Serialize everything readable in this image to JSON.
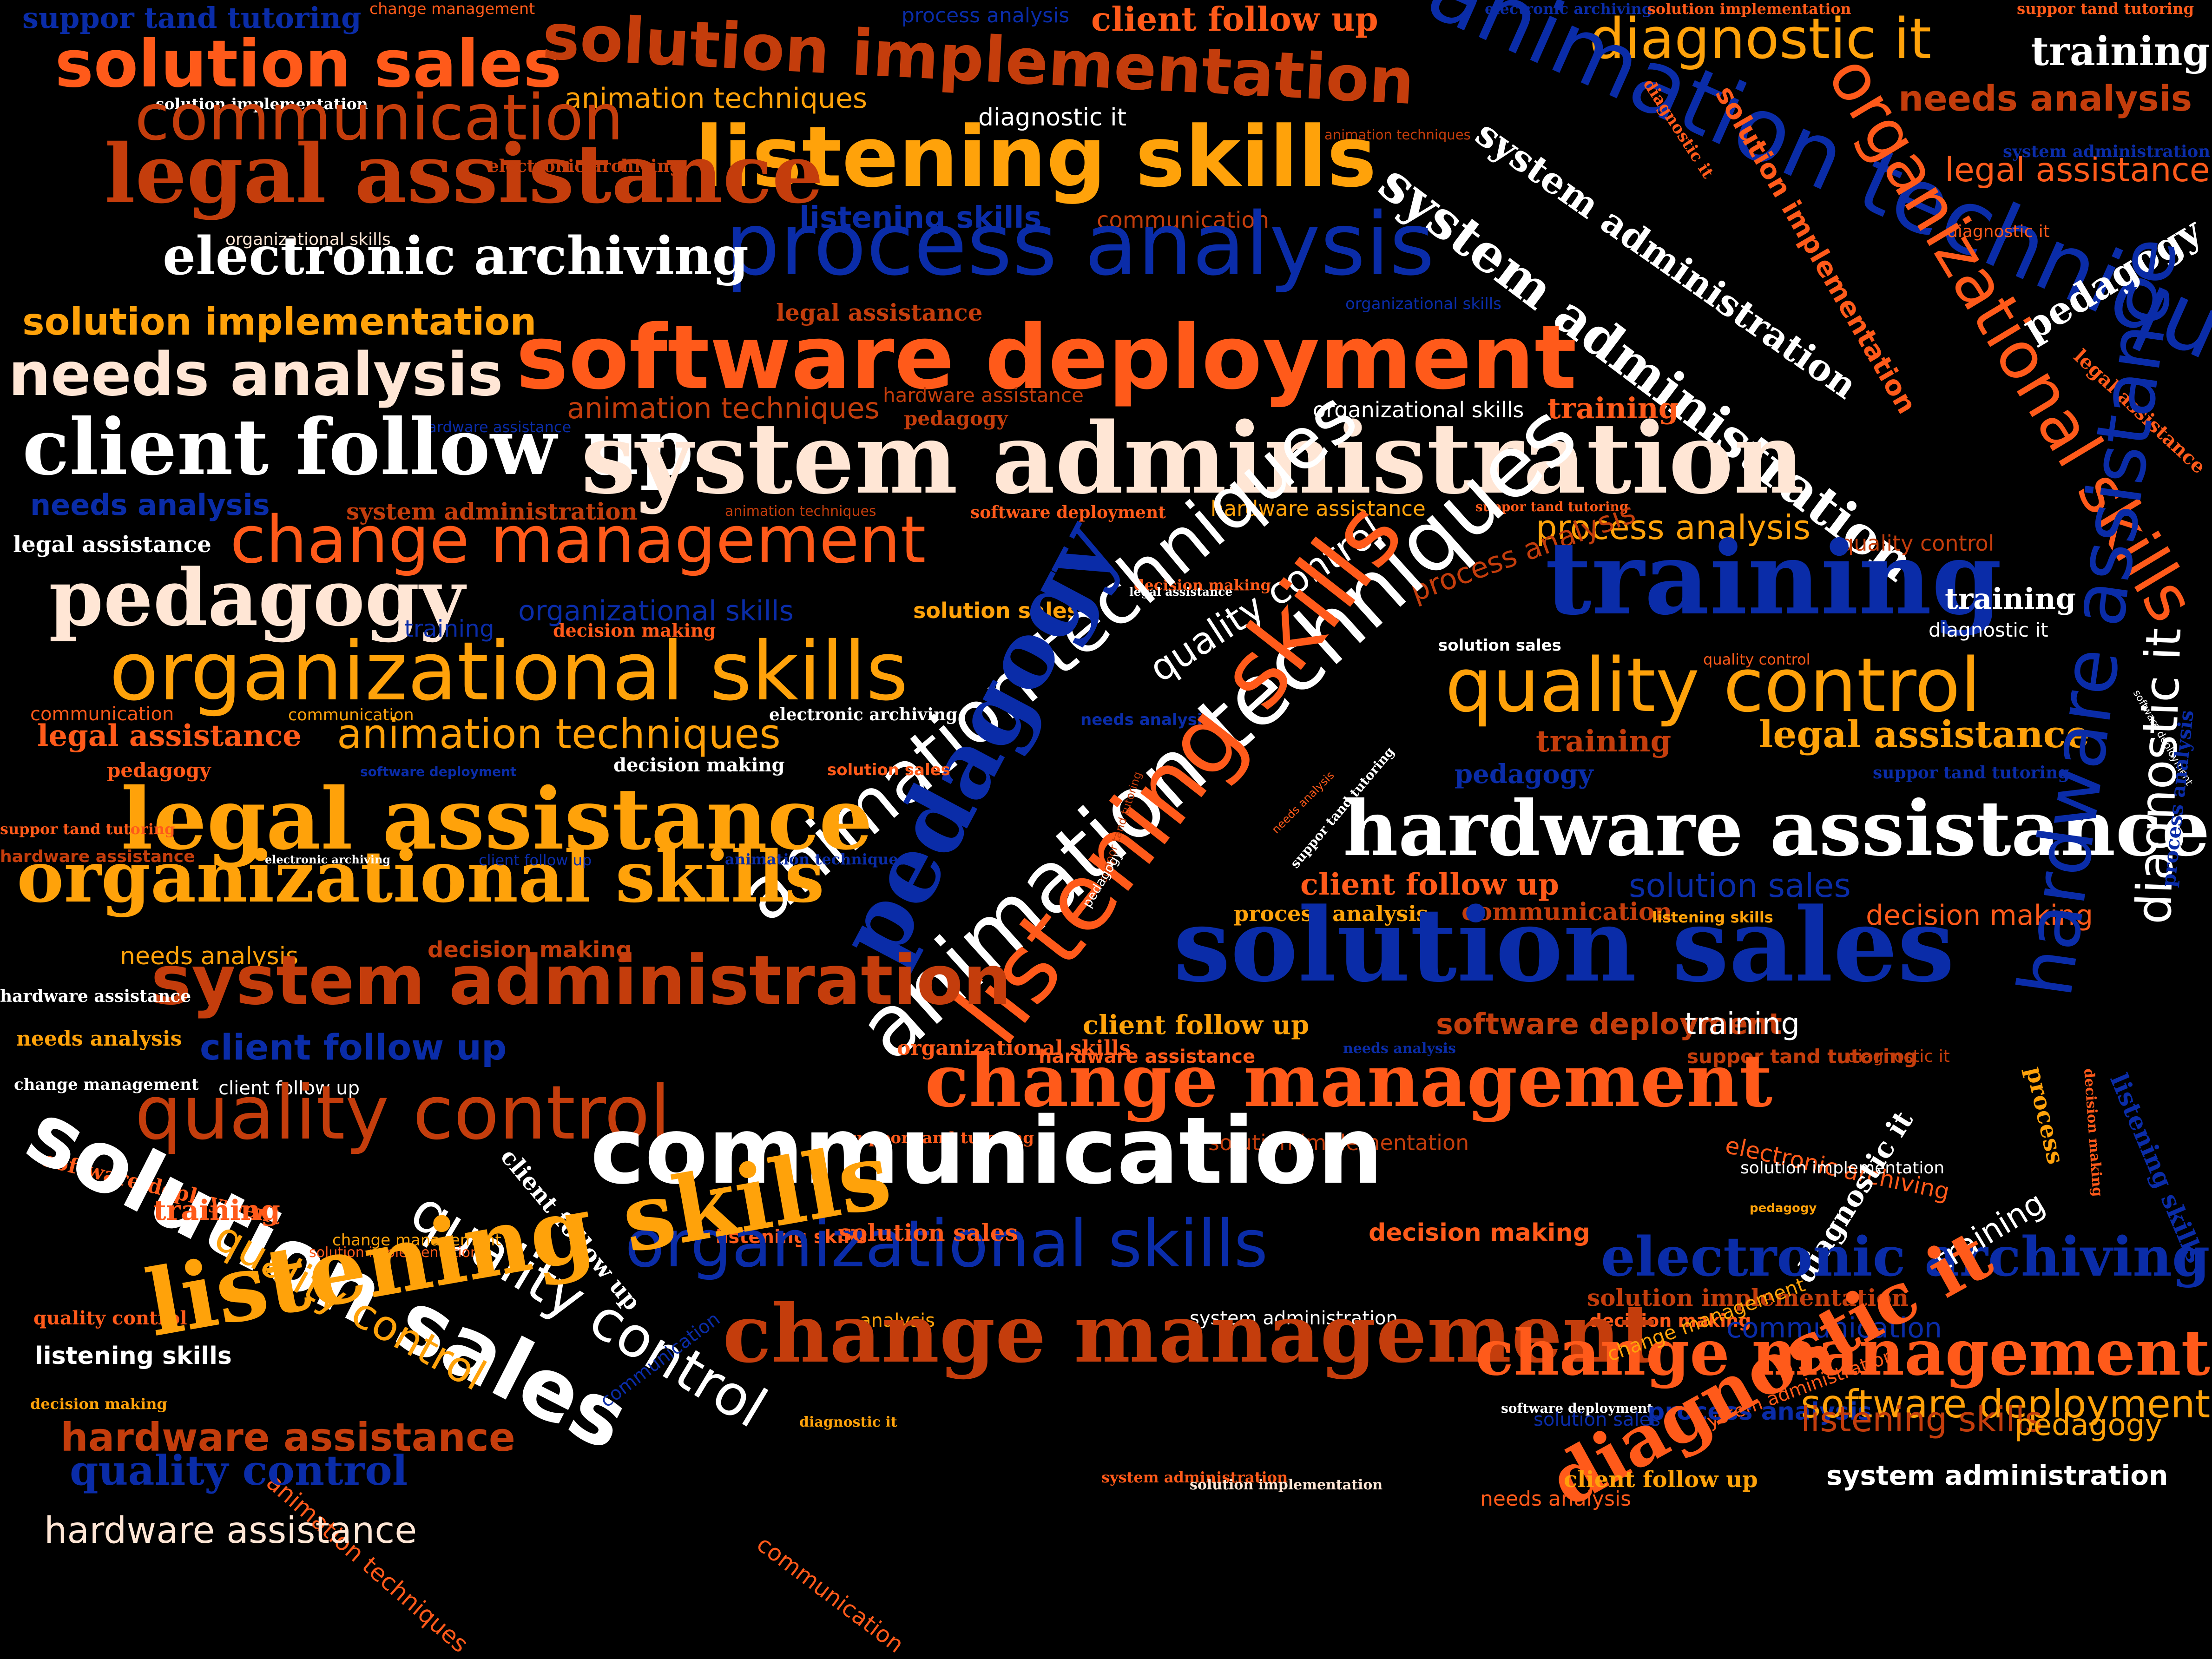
{
  "palette": {
    "orange": "#ff5a1a",
    "amber": "#ffa20a",
    "rust": "#c43d0c",
    "cream": "#ffe6d5",
    "white": "#ffffff",
    "blue": "#0a2ca8",
    "background": "#000000"
  },
  "words": [
    {
      "text": "suppor tand tutoring",
      "color": "blue"
    },
    {
      "text": "change management",
      "color": "orange"
    },
    {
      "text": "process analysis",
      "color": "blue"
    },
    {
      "text": "client follow up",
      "color": "orange"
    },
    {
      "text": "electronic archiving",
      "color": "blue"
    },
    {
      "text": "solution implementation",
      "color": "orange"
    },
    {
      "text": "suppor tand tutoring",
      "color": "orange"
    },
    {
      "text": "solution sales",
      "color": "orange"
    },
    {
      "text": "solution implementation",
      "color": "rust"
    },
    {
      "text": "diagnostic it",
      "color": "amber"
    },
    {
      "text": "training",
      "color": "white"
    },
    {
      "text": "animation techniques",
      "color": "blue"
    },
    {
      "text": "solution implementation",
      "color": "white"
    },
    {
      "text": "animation techniques",
      "color": "amber"
    },
    {
      "text": "communication",
      "color": "rust"
    },
    {
      "text": "diagnostic it",
      "color": "white"
    },
    {
      "text": "listening skills",
      "color": "amber"
    },
    {
      "text": "needs analysis",
      "color": "rust"
    },
    {
      "text": "organizational skills",
      "color": "orange"
    },
    {
      "text": "legal assistance",
      "color": "rust"
    },
    {
      "text": "electronic archiving",
      "color": "rust"
    },
    {
      "text": "animation techniques",
      "color": "rust"
    },
    {
      "text": "system administration",
      "color": "white"
    },
    {
      "text": "system administration",
      "color": "white"
    },
    {
      "text": "legal assistance",
      "color": "orange"
    },
    {
      "text": "listening skills",
      "color": "blue"
    },
    {
      "text": "communication",
      "color": "rust"
    },
    {
      "text": "organizational skills",
      "color": "cream"
    },
    {
      "text": "process analysis",
      "color": "blue"
    },
    {
      "text": "electronic archiving",
      "color": "white"
    },
    {
      "text": "solution implementation",
      "color": "orange"
    },
    {
      "text": "system administration",
      "color": "blue"
    },
    {
      "text": "diagnostic it",
      "color": "orange"
    },
    {
      "text": "diagnostic it",
      "color": "orange"
    },
    {
      "text": "pedagogy",
      "color": "white"
    },
    {
      "text": "organizational skills",
      "color": "blue"
    },
    {
      "text": "solution implementation",
      "color": "amber"
    },
    {
      "text": "legal assistance",
      "color": "rust"
    },
    {
      "text": "software deployment",
      "color": "orange"
    },
    {
      "text": "needs analysis",
      "color": "cream"
    },
    {
      "text": "legal assistance",
      "color": "orange"
    },
    {
      "text": "animation techniques",
      "color": "rust"
    },
    {
      "text": "hardware assistance",
      "color": "rust"
    },
    {
      "text": "pedagogy",
      "color": "rust"
    },
    {
      "text": "hardware assistance",
      "color": "blue"
    },
    {
      "text": "organizational skills",
      "color": "white"
    },
    {
      "text": "training",
      "color": "orange"
    },
    {
      "text": "client follow up",
      "color": "white"
    },
    {
      "text": "system administration",
      "color": "cream"
    },
    {
      "text": "needs analysis",
      "color": "blue"
    },
    {
      "text": "system administration",
      "color": "rust"
    },
    {
      "text": "animation techniques",
      "color": "rust"
    },
    {
      "text": "software deployment",
      "color": "orange"
    },
    {
      "text": "suppor tand tutoring",
      "color": "orange"
    },
    {
      "text": "hardware assistance",
      "color": "amber"
    },
    {
      "text": "change management",
      "color": "orange"
    },
    {
      "text": "process analysis",
      "color": "amber"
    },
    {
      "text": "legal assistance",
      "color": "white"
    },
    {
      "text": "quality control",
      "color": "rust"
    },
    {
      "text": "decision making",
      "color": "orange"
    },
    {
      "text": "legal assistance",
      "color": "white"
    },
    {
      "text": "pedagogy",
      "color": "cream"
    },
    {
      "text": "training",
      "color": "blue"
    },
    {
      "text": "organizational skills",
      "color": "blue"
    },
    {
      "text": "solution sales",
      "color": "amber"
    },
    {
      "text": "decision making",
      "color": "orange"
    },
    {
      "text": "animation techniques",
      "color": "white"
    },
    {
      "text": "process analysis",
      "color": "rust"
    },
    {
      "text": "quality control",
      "color": "white"
    },
    {
      "text": "training",
      "color": "blue"
    },
    {
      "text": "training",
      "color": "white"
    },
    {
      "text": "diagnostic it",
      "color": "white"
    },
    {
      "text": "pedagogy",
      "color": "blue"
    },
    {
      "text": "solution sales",
      "color": "white"
    },
    {
      "text": "communication",
      "color": "orange"
    },
    {
      "text": "organizational skills",
      "color": "amber"
    },
    {
      "text": "quality control",
      "color": "orange"
    },
    {
      "text": "communication",
      "color": "amber"
    },
    {
      "text": "quality control",
      "color": "amber"
    },
    {
      "text": "electronic archiving",
      "color": "white"
    },
    {
      "text": "legal assistance",
      "color": "orange"
    },
    {
      "text": "needs analysis",
      "color": "blue"
    },
    {
      "text": "animation techniques",
      "color": "amber"
    },
    {
      "text": "training",
      "color": "rust"
    },
    {
      "text": "legal assistance",
      "color": "amber"
    },
    {
      "text": "pedagogy",
      "color": "orange"
    },
    {
      "text": "software deployment",
      "color": "blue"
    },
    {
      "text": "decision making",
      "color": "white"
    },
    {
      "text": "solution sales",
      "color": "orange"
    },
    {
      "text": "pedagogy",
      "color": "blue"
    },
    {
      "text": "suppor tand tutoring",
      "color": "blue"
    },
    {
      "text": "legal assistance",
      "color": "amber"
    },
    {
      "text": "diagnostic it",
      "color": "white"
    },
    {
      "text": "animation techniques",
      "color": "white"
    },
    {
      "text": "listening skills",
      "color": "orange"
    },
    {
      "text": "suppor tand tutoring",
      "color": "orange"
    },
    {
      "text": "organizational skills",
      "color": "amber"
    },
    {
      "text": "needs analysis",
      "color": "orange"
    },
    {
      "text": "software deployment",
      "color": "white"
    },
    {
      "text": "hardware assistance",
      "color": "rust"
    },
    {
      "text": "electronic archiving",
      "color": "white"
    },
    {
      "text": "client follow up",
      "color": "blue"
    },
    {
      "text": "animation techniques",
      "color": "blue"
    },
    {
      "text": "suppor tand tutoring",
      "color": "rust"
    },
    {
      "text": "suppor tand tutoring",
      "color": "white"
    },
    {
      "text": "hardware assistance",
      "color": "white"
    },
    {
      "text": "pedagogy",
      "color": "white"
    },
    {
      "text": "client follow up",
      "color": "orange"
    },
    {
      "text": "solution sales",
      "color": "blue"
    },
    {
      "text": "process analysis",
      "color": "amber"
    },
    {
      "text": "communication",
      "color": "rust"
    },
    {
      "text": "listening skills",
      "color": "amber"
    },
    {
      "text": "decision making",
      "color": "orange"
    },
    {
      "text": "needs analysis",
      "color": "amber"
    },
    {
      "text": "decision making",
      "color": "rust"
    },
    {
      "text": "system administration",
      "color": "rust"
    },
    {
      "text": "solution sales",
      "color": "blue"
    },
    {
      "text": "process analysis",
      "color": "blue"
    },
    {
      "text": "hardware assistance",
      "color": "white"
    },
    {
      "text": "client follow up",
      "color": "amber"
    },
    {
      "text": "software deployment",
      "color": "rust"
    },
    {
      "text": "training",
      "color": "white"
    },
    {
      "text": "needs analysis",
      "color": "blue"
    },
    {
      "text": "needs analysis",
      "color": "amber"
    },
    {
      "text": "client follow up",
      "color": "blue"
    },
    {
      "text": "organizational skills",
      "color": "orange"
    },
    {
      "text": "hardware assistance",
      "color": "orange"
    },
    {
      "text": "suppor tand tutoring",
      "color": "rust"
    },
    {
      "text": "diagnostic it",
      "color": "rust"
    },
    {
      "text": "client follow up",
      "color": "white"
    },
    {
      "text": "change management",
      "color": "white"
    },
    {
      "text": "quality control",
      "color": "rust"
    },
    {
      "text": "suppor tand tutoring",
      "color": "orange"
    },
    {
      "text": "solution implementation",
      "color": "rust"
    },
    {
      "text": "process",
      "color": "amber"
    },
    {
      "text": "decision making",
      "color": "orange"
    },
    {
      "text": "software deployment",
      "color": "orange"
    },
    {
      "text": "communication",
      "color": "white"
    },
    {
      "text": "quality control",
      "color": "white"
    },
    {
      "text": "change management",
      "color": "orange"
    },
    {
      "text": "listening skills",
      "color": "blue"
    },
    {
      "text": "electronic archiving",
      "color": "orange"
    },
    {
      "text": "hardware assistance",
      "color": "blue"
    },
    {
      "text": "solution sales",
      "color": "white"
    },
    {
      "text": "training",
      "color": "orange"
    },
    {
      "text": "quality control",
      "color": "amber"
    },
    {
      "text": "solution implementation",
      "color": "white"
    },
    {
      "text": "diagnostic it",
      "color": "white"
    },
    {
      "text": "client follow up",
      "color": "white"
    },
    {
      "text": "listening skills",
      "color": "orange"
    },
    {
      "text": "change management",
      "color": "amber"
    },
    {
      "text": "organizational skills",
      "color": "blue"
    },
    {
      "text": "decision making",
      "color": "orange"
    },
    {
      "text": "solution sales",
      "color": "orange"
    },
    {
      "text": "pedagogy",
      "color": "amber"
    },
    {
      "text": "electronic archiving",
      "color": "blue"
    },
    {
      "text": "training",
      "color": "white"
    },
    {
      "text": "solution implementation",
      "color": "orange"
    },
    {
      "text": "analysis",
      "color": "amber"
    },
    {
      "text": "solution implementation",
      "color": "rust"
    },
    {
      "text": "system administration",
      "color": "white"
    },
    {
      "text": "quality control",
      "color": "orange"
    },
    {
      "text": "animation techniques",
      "color": "orange"
    },
    {
      "text": "listening skills",
      "color": "amber"
    },
    {
      "text": "decision making",
      "color": "orange"
    },
    {
      "text": "communication",
      "color": "blue"
    },
    {
      "text": "listening skills",
      "color": "white"
    },
    {
      "text": "communication",
      "color": "blue"
    },
    {
      "text": "change management",
      "color": "rust"
    },
    {
      "text": "change management",
      "color": "orange"
    },
    {
      "text": "decision making",
      "color": "amber"
    },
    {
      "text": "diagnostic it",
      "color": "amber"
    },
    {
      "text": "software deployment",
      "color": "white"
    },
    {
      "text": "system administration",
      "color": "orange"
    },
    {
      "text": "process analysis",
      "color": "blue"
    },
    {
      "text": "software deployment",
      "color": "amber"
    },
    {
      "text": "hardware assistance",
      "color": "rust"
    },
    {
      "text": "solution sales",
      "color": "blue"
    },
    {
      "text": "diagnostic it",
      "color": "orange"
    },
    {
      "text": "quality control",
      "color": "blue"
    },
    {
      "text": "change management",
      "color": "amber"
    },
    {
      "text": "communication",
      "color": "orange"
    },
    {
      "text": "listening skills",
      "color": "rust"
    },
    {
      "text": "pedagogy",
      "color": "amber"
    },
    {
      "text": "system administration",
      "color": "orange"
    },
    {
      "text": "hardware assistance",
      "color": "cream"
    },
    {
      "text": "solution implementation",
      "color": "cream"
    },
    {
      "text": "client follow up",
      "color": "amber"
    },
    {
      "text": "system administration",
      "color": "white"
    },
    {
      "text": "needs analysis",
      "color": "orange"
    }
  ]
}
